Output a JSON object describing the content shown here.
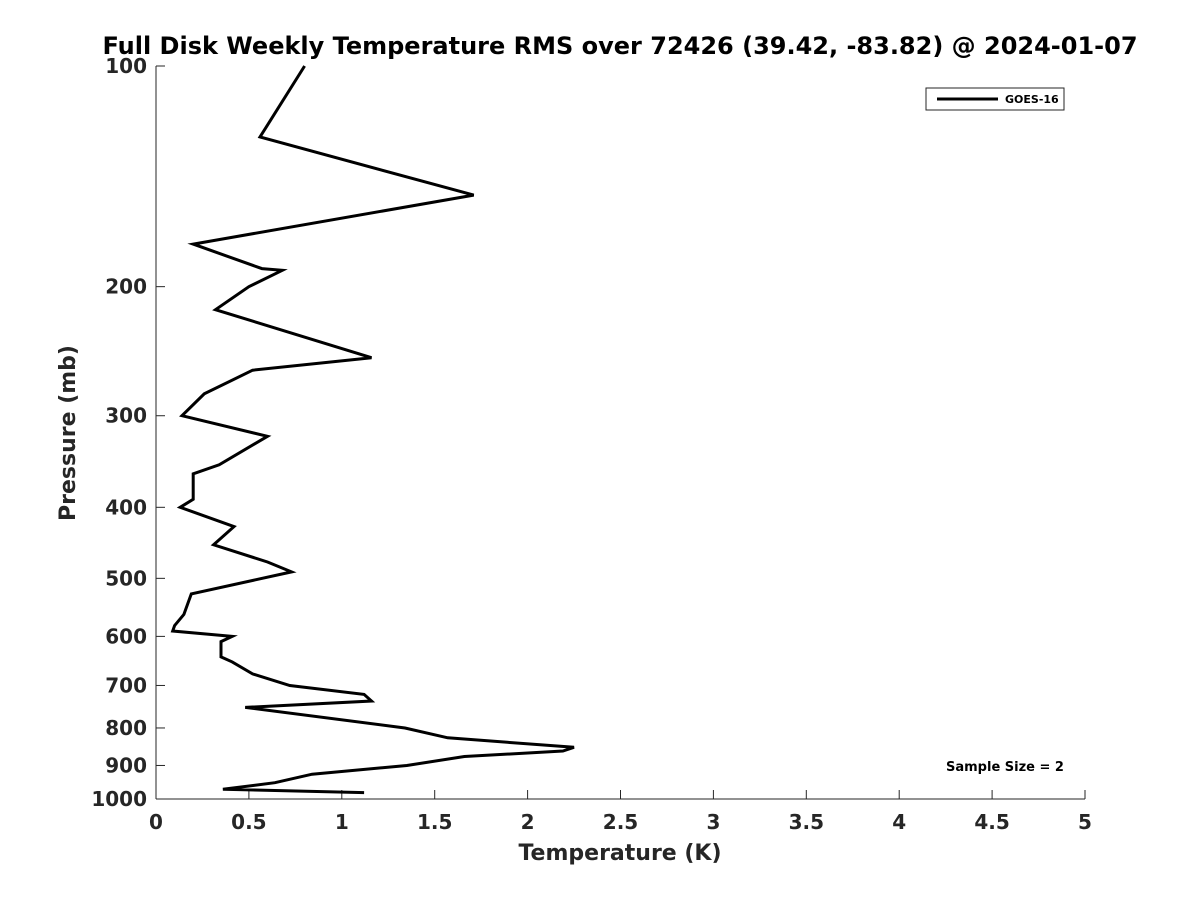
{
  "chart_data": {
    "type": "line",
    "title": "Full Disk Weekly Temperature RMS over 72426 (39.42, -83.82) @ 2024-01-07",
    "xlabel": "Temperature (K)",
    "ylabel": "Pressure (mb)",
    "xlim": [
      0,
      5
    ],
    "ylim": [
      100,
      1000
    ],
    "y_scale": "log",
    "y_reversed": true,
    "x_ticks": [
      0,
      0.5,
      1,
      1.5,
      2,
      2.5,
      3,
      3.5,
      4,
      4.5,
      5
    ],
    "x_tick_labels": [
      "0",
      "0.5",
      "1",
      "1.5",
      "2",
      "2.5",
      "3",
      "3.5",
      "4",
      "4.5",
      "5"
    ],
    "y_ticks": [
      100,
      200,
      300,
      400,
      500,
      600,
      700,
      800,
      900,
      1000
    ],
    "y_tick_labels": [
      "100",
      "200",
      "300",
      "400",
      "500",
      "600",
      "700",
      "800",
      "900",
      "1000"
    ],
    "grid": false,
    "legend": {
      "position": "top-right",
      "entries": [
        "GOES-16"
      ]
    },
    "annotation": "Sample Size = 2",
    "series": [
      {
        "name": "GOES-16",
        "color": "#000000",
        "points": [
          [
            0.8,
            100
          ],
          [
            0.56,
            125
          ],
          [
            1.71,
            150
          ],
          [
            0.2,
            175
          ],
          [
            0.57,
            189
          ],
          [
            0.68,
            190
          ],
          [
            0.5,
            200
          ],
          [
            0.32,
            215
          ],
          [
            1.16,
            250
          ],
          [
            0.52,
            260
          ],
          [
            0.26,
            280
          ],
          [
            0.14,
            300
          ],
          [
            0.6,
            320
          ],
          [
            0.34,
            350
          ],
          [
            0.2,
            360
          ],
          [
            0.2,
            390
          ],
          [
            0.13,
            400
          ],
          [
            0.42,
            425
          ],
          [
            0.31,
            450
          ],
          [
            0.6,
            475
          ],
          [
            0.73,
            490
          ],
          [
            0.19,
            525
          ],
          [
            0.15,
            560
          ],
          [
            0.1,
            580
          ],
          [
            0.09,
            590
          ],
          [
            0.41,
            600
          ],
          [
            0.35,
            610
          ],
          [
            0.35,
            640
          ],
          [
            0.41,
            650
          ],
          [
            0.52,
            675
          ],
          [
            0.72,
            700
          ],
          [
            1.12,
            720
          ],
          [
            1.16,
            735
          ],
          [
            0.48,
            750
          ],
          [
            1.34,
            800
          ],
          [
            1.57,
            825
          ],
          [
            2.25,
            850
          ],
          [
            2.19,
            860
          ],
          [
            1.66,
            875
          ],
          [
            1.35,
            900
          ],
          [
            0.84,
            925
          ],
          [
            0.64,
            950
          ],
          [
            0.36,
            970
          ],
          [
            1.12,
            980
          ]
        ]
      }
    ]
  }
}
